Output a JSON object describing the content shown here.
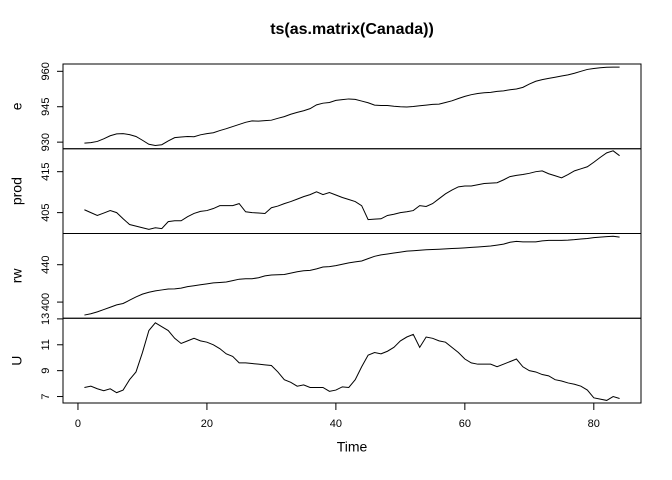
{
  "title": "ts(as.matrix(Canada))",
  "chart_data": [
    {
      "type": "line",
      "ylabel": "e",
      "color": "#000000",
      "ylim": [
        927.2,
        963.1
      ],
      "yticks": [
        930,
        945,
        960
      ],
      "values": [
        929.6,
        929.8,
        930.3,
        931.4,
        932.7,
        933.5,
        933.6,
        933.2,
        932.4,
        930.8,
        929.1,
        928.6,
        928.9,
        930.5,
        931.9,
        932.2,
        932.4,
        932.3,
        933.1,
        933.6,
        934.0,
        934.9,
        935.7,
        936.6,
        937.5,
        938.4,
        939.0,
        938.9,
        939.1,
        939.3,
        940.1,
        940.8,
        941.8,
        942.6,
        943.3,
        944.2,
        945.8,
        946.5,
        946.8,
        947.7,
        948.0,
        948.3,
        948.1,
        947.4,
        946.7,
        945.7,
        945.5,
        945.5,
        945.2,
        945.0,
        944.9,
        945.1,
        945.4,
        945.7,
        946.0,
        946.1,
        946.8,
        947.5,
        948.5,
        949.4,
        950.1,
        950.6,
        950.9,
        951.1,
        951.5,
        951.7,
        952.2,
        952.5,
        953.2,
        954.6,
        955.8,
        956.5,
        957.0,
        957.5,
        958.0,
        958.5,
        959.2,
        960.0,
        960.8,
        961.2,
        961.5,
        961.7,
        961.8,
        961.8
      ]
    },
    {
      "type": "line",
      "ylabel": "prod",
      "color": "#000000",
      "ylim": [
        399.9,
        420.6
      ],
      "yticks": [
        405,
        415
      ],
      "values": [
        405.7,
        405.0,
        404.3,
        404.9,
        405.5,
        405.0,
        403.5,
        402.1,
        401.7,
        401.3,
        400.9,
        401.3,
        401.1,
        402.8,
        403.0,
        403.0,
        404.0,
        404.8,
        405.3,
        405.5,
        406.0,
        406.7,
        406.7,
        406.7,
        407.2,
        405.2,
        405.0,
        404.9,
        404.8,
        406.2,
        406.6,
        407.2,
        407.7,
        408.3,
        408.9,
        409.4,
        410.1,
        409.4,
        409.9,
        409.3,
        408.7,
        408.2,
        407.7,
        406.7,
        403.3,
        403.4,
        403.5,
        404.3,
        404.6,
        405.0,
        405.2,
        405.5,
        406.7,
        406.5,
        407.2,
        408.4,
        409.6,
        410.5,
        411.3,
        411.5,
        411.5,
        411.8,
        412.1,
        412.2,
        412.3,
        413.0,
        413.8,
        414.1,
        414.3,
        414.6,
        415.0,
        415.2,
        414.5,
        414.0,
        413.5,
        414.3,
        415.2,
        415.7,
        416.2,
        417.3,
        418.5,
        419.6,
        420.1,
        418.9
      ]
    },
    {
      "type": "line",
      "ylabel": "rw",
      "color": "#000000",
      "ylim": [
        382.7,
        473.4
      ],
      "yticks": [
        400,
        440
      ],
      "values": [
        386.1,
        387.5,
        389.5,
        392,
        394.5,
        397,
        398.5,
        402,
        405.5,
        408.5,
        410.5,
        412,
        413,
        414,
        414.2,
        415,
        416.5,
        417.5,
        418.5,
        419.5,
        420.5,
        421,
        421.5,
        423,
        424.5,
        425,
        425,
        426,
        428,
        429,
        429.2,
        429.5,
        431,
        432.5,
        433.5,
        434,
        435.5,
        437.5,
        438,
        439,
        440.5,
        442,
        443,
        444,
        446.5,
        449,
        450.5,
        451.5,
        452.5,
        453.5,
        454.5,
        455,
        455.5,
        456,
        456.3,
        456.6,
        457,
        457.3,
        457.6,
        458,
        458.5,
        459,
        459.5,
        460,
        461,
        462,
        464,
        465,
        464.5,
        464.5,
        464.5,
        465.5,
        466,
        466,
        466,
        466.3,
        466.8,
        467.5,
        468,
        469,
        469.5,
        470,
        470.5,
        469.5
      ]
    },
    {
      "type": "line",
      "ylabel": "U",
      "color": "#000000",
      "ylim": [
        6.5,
        13.05
      ],
      "yticks": [
        7,
        9,
        11,
        13
      ],
      "values": [
        7.7,
        7.8,
        7.6,
        7.45,
        7.6,
        7.3,
        7.5,
        8.3,
        8.9,
        10.4,
        12.1,
        12.7,
        12.4,
        12.1,
        11.5,
        11.1,
        11.3,
        11.5,
        11.3,
        11.2,
        11.0,
        10.7,
        10.3,
        10.1,
        9.6,
        9.6,
        9.55,
        9.5,
        9.45,
        9.4,
        8.9,
        8.3,
        8.1,
        7.8,
        7.9,
        7.7,
        7.7,
        7.7,
        7.4,
        7.5,
        7.75,
        7.7,
        8.3,
        9.3,
        10.2,
        10.4,
        10.3,
        10.5,
        10.8,
        11.3,
        11.6,
        11.8,
        10.8,
        11.6,
        11.5,
        11.3,
        11.2,
        10.8,
        10.4,
        9.9,
        9.6,
        9.5,
        9.5,
        9.5,
        9.3,
        9.5,
        9.7,
        9.9,
        9.3,
        9.0,
        8.9,
        8.7,
        8.6,
        8.3,
        8.2,
        8.05,
        7.95,
        7.8,
        7.5,
        6.9,
        6.8,
        6.7,
        7.0,
        6.85
      ],
      "xlabel": "Time",
      "xlim": [
        -2.32,
        87.32
      ],
      "xticks": [
        0,
        20,
        40,
        60,
        80
      ],
      "x": [
        1,
        2,
        3,
        4,
        5,
        6,
        7,
        8,
        9,
        10,
        11,
        12,
        13,
        14,
        15,
        16,
        17,
        18,
        19,
        20,
        21,
        22,
        23,
        24,
        25,
        26,
        27,
        28,
        29,
        30,
        31,
        32,
        33,
        34,
        35,
        36,
        37,
        38,
        39,
        40,
        41,
        42,
        43,
        44,
        45,
        46,
        47,
        48,
        49,
        50,
        51,
        52,
        53,
        54,
        55,
        56,
        57,
        58,
        59,
        60,
        61,
        62,
        63,
        64,
        65,
        66,
        67,
        68,
        69,
        70,
        71,
        72,
        73,
        74,
        75,
        76,
        77,
        78,
        79,
        80,
        81,
        82,
        83,
        84
      ]
    }
  ]
}
